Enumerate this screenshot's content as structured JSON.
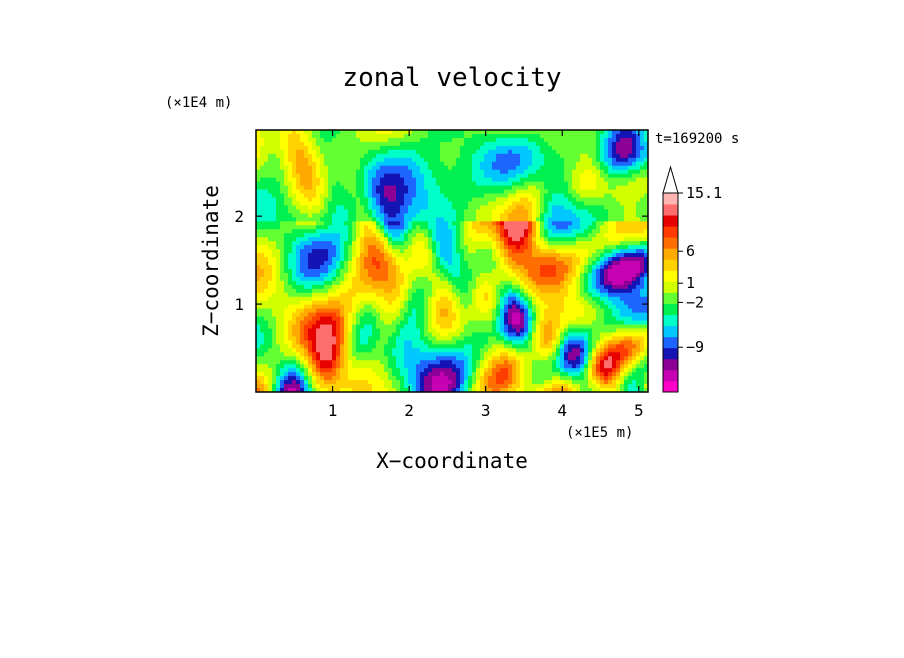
{
  "chart_data": {
    "type": "heatmap",
    "title": "zonal velocity",
    "xlabel": "X−coordinate",
    "ylabel": "Z−coordinate",
    "x_unit": "(×1E5 m)",
    "y_unit": "(×1E4 m)",
    "time_label": "t=169200 s",
    "xlim": [
      0,
      5.12
    ],
    "ylim": [
      0,
      2.98
    ],
    "x_ticks": [
      1,
      2,
      3,
      4,
      5
    ],
    "y_ticks": [
      1,
      2
    ],
    "x_tick_labels": [
      "1",
      "2",
      "3",
      "4",
      "5"
    ],
    "y_tick_labels": [
      "1",
      "2"
    ],
    "colorbar": {
      "colors": [
        "#ff00c8",
        "#c800b4",
        "#8c0096",
        "#1414b4",
        "#1e64ff",
        "#00c8ff",
        "#00ffc8",
        "#00f050",
        "#64ff32",
        "#d2ff00",
        "#ffff00",
        "#ffd200",
        "#ffaa00",
        "#ff6e00",
        "#ff3c00",
        "#e60000",
        "#ff6e6e",
        "#ffb4b4",
        "#ffffff"
      ],
      "tick_labels": [
        "15.1",
        "6",
        "1",
        "−2",
        "−9"
      ],
      "tick_values": [
        15.1,
        6,
        1,
        -2,
        -9
      ],
      "min": -16,
      "max": 15.1,
      "extend_top": true
    },
    "grid": false
  }
}
